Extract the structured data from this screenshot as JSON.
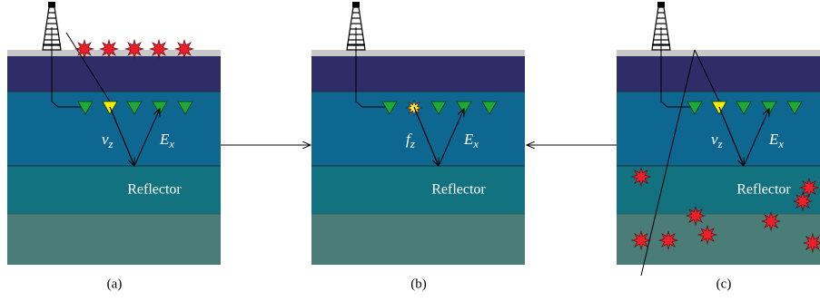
{
  "panels": [
    {
      "caption": "(a)",
      "reflector": "Reflector",
      "labels": [
        {
          "main": "v",
          "sub": "z"
        },
        {
          "main": "E",
          "sub": "x"
        }
      ]
    },
    {
      "caption": "(b)",
      "reflector": "Reflector",
      "labels": [
        {
          "main": "f",
          "sub": "z"
        },
        {
          "main": "E",
          "sub": "x"
        }
      ]
    },
    {
      "caption": "(c)",
      "reflector": "Reflector",
      "labels": [
        {
          "main": "v",
          "sub": "z"
        },
        {
          "main": "E",
          "sub": "x"
        }
      ]
    }
  ]
}
